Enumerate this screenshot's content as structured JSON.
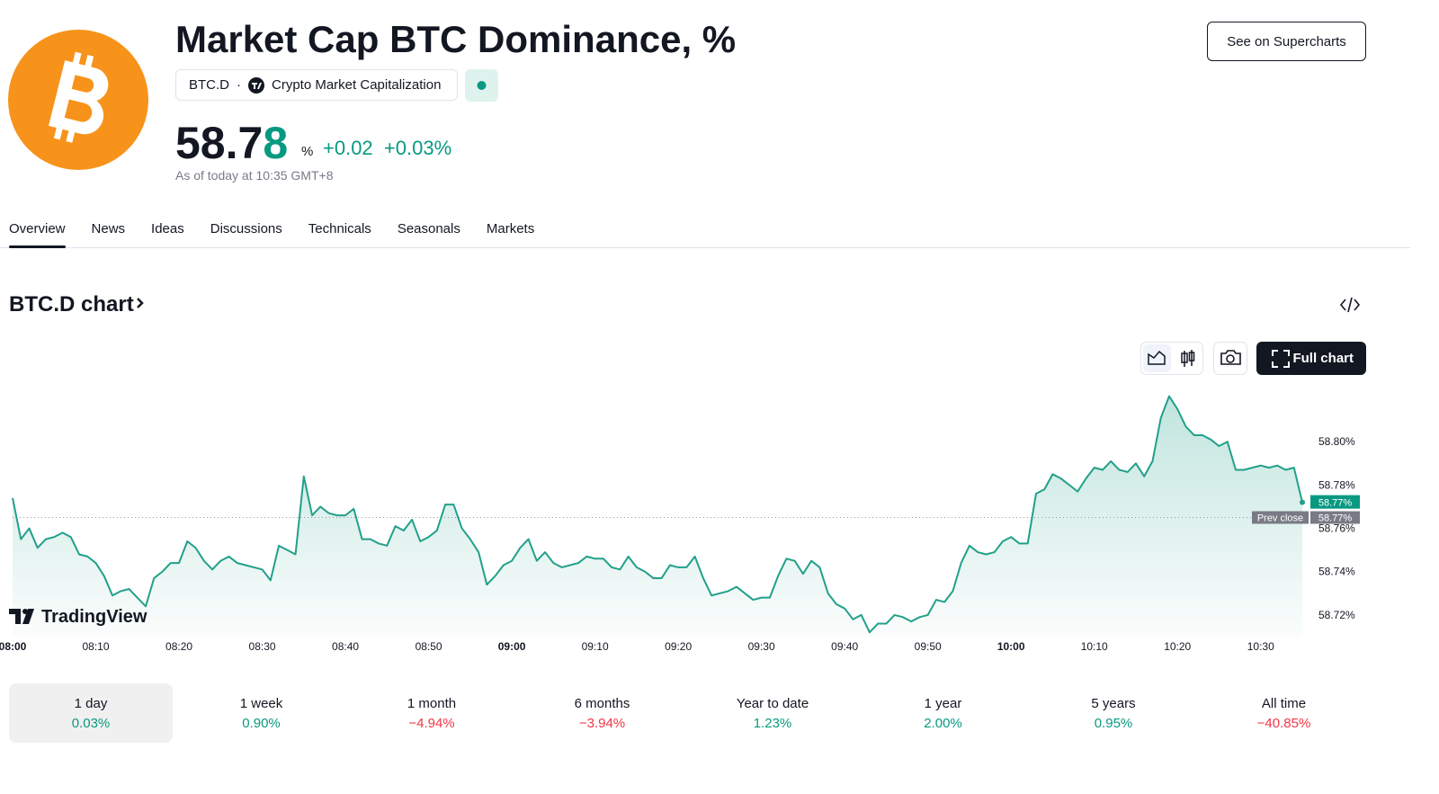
{
  "header": {
    "title": "Market Cap BTC Dominance, %",
    "symbol": "BTC.D",
    "source": "Crypto Market Capitalization",
    "price_main": "58.7",
    "price_last": "8",
    "unit": "%",
    "change": "+0.02",
    "change_pct": "+0.03%",
    "as_of": "As of today at 10:35 GMT+8",
    "button": "See on Supercharts"
  },
  "tabs": [
    "Overview",
    "News",
    "Ideas",
    "Discussions",
    "Technicals",
    "Seasonals",
    "Markets"
  ],
  "section_title": "BTC.D chart",
  "full_chart": "Full chart",
  "watermark": "TradingView",
  "chart_data": {
    "type": "line",
    "color": "#22a08a",
    "categories": [
      "08:00",
      null,
      null,
      null,
      null,
      null,
      null,
      null,
      null,
      null,
      "08:10",
      null,
      null,
      null,
      null,
      null,
      null,
      null,
      null,
      null,
      "08:20",
      null,
      null,
      null,
      null,
      null,
      null,
      null,
      null,
      null,
      "08:30",
      null,
      null,
      null,
      null,
      null,
      null,
      null,
      null,
      null,
      "08:40",
      null,
      null,
      null,
      null,
      null,
      null,
      null,
      null,
      null,
      "08:50",
      null,
      null,
      null,
      null,
      null,
      null,
      null,
      null,
      null,
      "09:00",
      null,
      null,
      null,
      null,
      null,
      null,
      null,
      null,
      null,
      "09:10",
      null,
      null,
      null,
      null,
      null,
      null,
      null,
      null,
      null,
      "09:20",
      null,
      null,
      null,
      null,
      null,
      null,
      null,
      null,
      null,
      "09:30",
      null,
      null,
      null,
      null,
      null,
      null,
      null,
      null,
      null,
      "09:40",
      null,
      null,
      null,
      null,
      null,
      null,
      null,
      null,
      null,
      "09:50",
      null,
      null,
      null,
      null,
      null,
      null,
      null,
      null,
      null,
      "10:00",
      null,
      null,
      null,
      null,
      null,
      null,
      null,
      null,
      null,
      "10:10",
      null,
      null,
      null,
      null,
      null,
      null,
      null,
      null,
      null,
      "10:20",
      null,
      null,
      null,
      null,
      null,
      null,
      null,
      null,
      null,
      "10:30",
      null,
      null,
      null,
      null,
      null
    ],
    "values": [
      58.774,
      58.755,
      58.76,
      58.751,
      58.755,
      58.756,
      58.758,
      58.756,
      58.748,
      58.747,
      58.744,
      58.738,
      58.729,
      58.731,
      58.732,
      58.728,
      58.724,
      58.737,
      58.74,
      58.744,
      58.744,
      58.754,
      58.751,
      58.745,
      58.741,
      58.745,
      58.747,
      58.744,
      58.743,
      58.742,
      58.741,
      58.736,
      58.752,
      58.75,
      58.748,
      58.784,
      58.766,
      58.77,
      58.767,
      58.766,
      58.766,
      58.769,
      58.755,
      58.755,
      58.753,
      58.752,
      58.761,
      58.759,
      58.764,
      58.754,
      58.756,
      58.759,
      58.771,
      58.771,
      58.76,
      58.755,
      58.749,
      58.734,
      58.738,
      58.743,
      58.745,
      58.751,
      58.755,
      58.745,
      58.749,
      58.744,
      58.742,
      58.743,
      58.744,
      58.747,
      58.746,
      58.746,
      58.742,
      58.741,
      58.747,
      58.742,
      58.74,
      58.737,
      58.737,
      58.743,
      58.742,
      58.742,
      58.747,
      58.737,
      58.729,
      58.73,
      58.731,
      58.733,
      58.73,
      58.727,
      58.728,
      58.728,
      58.738,
      58.746,
      58.745,
      58.739,
      58.745,
      58.742,
      58.73,
      58.725,
      58.723,
      58.718,
      58.72,
      58.712,
      58.716,
      58.716,
      58.72,
      58.719,
      58.717,
      58.719,
      58.72,
      58.727,
      58.726,
      58.731,
      58.744,
      58.752,
      58.749,
      58.748,
      58.749,
      58.754,
      58.756,
      58.753,
      58.753,
      58.776,
      58.778,
      58.785,
      58.783,
      58.78,
      58.777,
      58.783,
      58.788,
      58.787,
      58.791,
      58.787,
      58.786,
      58.79,
      58.784,
      58.791,
      58.811,
      58.821,
      58.815,
      58.807,
      58.803,
      58.803,
      58.801,
      58.798,
      58.8,
      58.787,
      58.787,
      58.788,
      58.789,
      58.788,
      58.789,
      58.787,
      58.788,
      58.772
    ],
    "last_value_label": "58.77%",
    "prev_close": {
      "label": "Prev close",
      "value": 58.765,
      "value_label": "58.77%"
    },
    "ylim": [
      58.71,
      58.825
    ],
    "yticks": [
      {
        "value": 58.72,
        "label": "58.72%"
      },
      {
        "value": 58.74,
        "label": "58.74%"
      },
      {
        "value": 58.76,
        "label": "58.76%"
      },
      {
        "value": 58.78,
        "label": "58.78%"
      },
      {
        "value": 58.8,
        "label": "58.80%"
      }
    ],
    "grid": false
  },
  "periods": [
    {
      "label": "1 day",
      "value": "0.03%"
    },
    {
      "label": "1 week",
      "value": "0.90%"
    },
    {
      "label": "1 month",
      "value": "−4.94%"
    },
    {
      "label": "6 months",
      "value": "−3.94%"
    },
    {
      "label": "Year to date",
      "value": "1.23%"
    },
    {
      "label": "1 year",
      "value": "2.00%"
    },
    {
      "label": "5 years",
      "value": "0.95%"
    },
    {
      "label": "All time",
      "value": "−40.85%"
    }
  ],
  "selected_period": 0
}
